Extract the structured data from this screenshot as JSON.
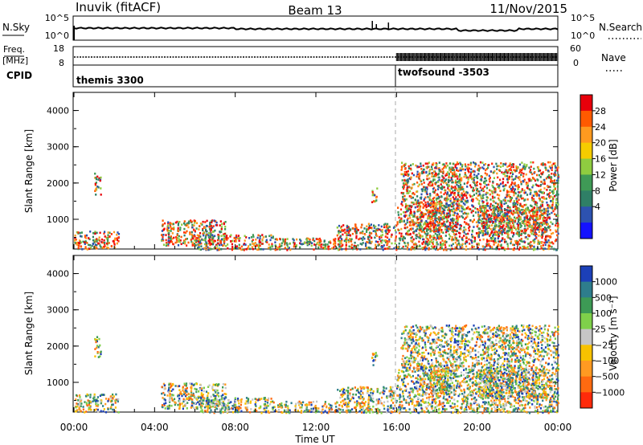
{
  "header": {
    "station": "Inuvik (fitACF)",
    "beam": "Beam 13",
    "date": "11/Nov/2015"
  },
  "chart_data": [
    {
      "type": "line",
      "name": "noise-panel",
      "left_label": "N.Sky",
      "left_ticks": [
        "10^5",
        "10^0"
      ],
      "right_label": "N.Search",
      "right_ticks": [
        "10^5",
        "10^0"
      ],
      "y_scale": "log"
    },
    {
      "type": "line",
      "name": "frequency-panel",
      "left_label_top": "Freq.",
      "left_label_unit": "[MHz]",
      "left_ticks": [
        18,
        8
      ],
      "right_label": "Nave",
      "right_ticks": [
        60,
        0
      ],
      "series_freq_mhz_approx": 11
    },
    {
      "type": "table",
      "name": "cpid-panel",
      "label": "CPID",
      "entries": [
        {
          "start": "00:00",
          "name": "themis 3300"
        },
        {
          "start": "16:00",
          "name": "twofsound -3503"
        }
      ]
    },
    {
      "type": "heatmap",
      "name": "power-panel",
      "x": [
        "00:00",
        "04:00",
        "08:00",
        "12:00",
        "16:00",
        "20:00",
        "00:00"
      ],
      "ylabel": "Slant Range [km]",
      "yticks": [
        1000,
        2000,
        3000,
        4000
      ],
      "ylim": [
        180,
        4500
      ],
      "colorbar_label": "Power [dB]",
      "colorbar_ticks": [
        28,
        24,
        20,
        16,
        12,
        8,
        4
      ],
      "colors": [
        "#e8000b",
        "#ff5a00",
        "#ff9a1f",
        "#f5cc00",
        "#8fcc40",
        "#3f9a56",
        "#2f7f66",
        "#2d52b0",
        "#1412ff"
      ]
    },
    {
      "type": "heatmap",
      "name": "velocity-panel",
      "x": [
        "00:00",
        "04:00",
        "08:00",
        "12:00",
        "16:00",
        "20:00",
        "00:00"
      ],
      "xlabel": "Time UT",
      "ylabel": "Slant Range [km]",
      "yticks": [
        1000,
        2000,
        3000,
        4000
      ],
      "ylim": [
        180,
        4500
      ],
      "colorbar_label": "Velocity [m s⁻¹]",
      "colorbar_ticks": [
        "1000",
        "500",
        "100",
        "25",
        "−25",
        "−100",
        "−500",
        "−1000"
      ],
      "colors": [
        "#1c40b8",
        "#2e7d8c",
        "#3d9a55",
        "#7fd04a",
        "#c6c6c6",
        "#f7c200",
        "#ff9a22",
        "#ff6a10",
        "#ff2a0a"
      ]
    }
  ]
}
